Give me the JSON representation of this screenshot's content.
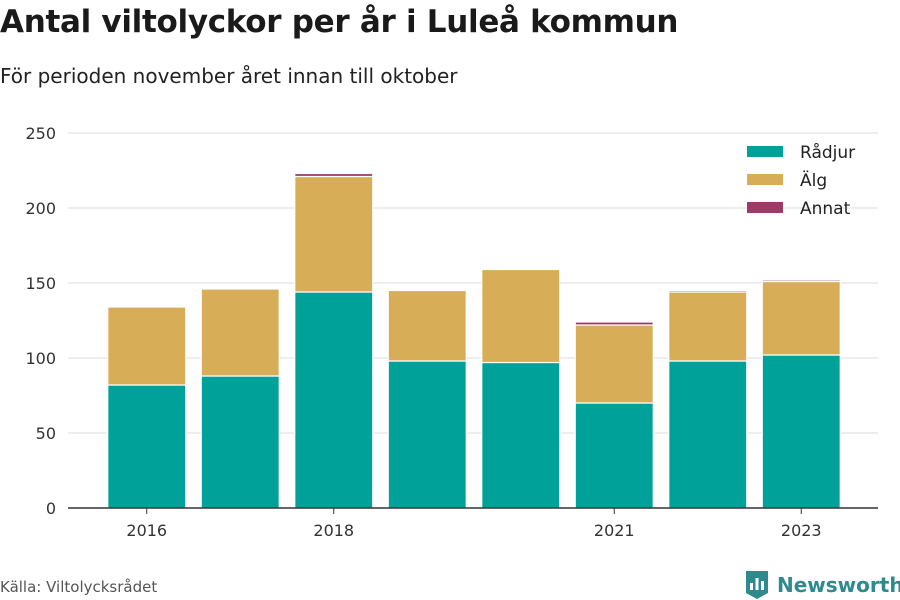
{
  "header": {
    "title": "Antal viltolyckor per år i Luleå kommun",
    "subtitle": "För perioden november året innan till oktober"
  },
  "footer": {
    "source": "Källa: Viltolycksrådet",
    "brand": "Newsworthy",
    "brand_icon": "bar-chart-badge-icon"
  },
  "colors": {
    "rådjur": "#00a199",
    "älg": "#d8ad58",
    "annat": "#9b3c66",
    "grid": "#dddddd",
    "axis": "#333333",
    "brand": "#2f8a8e"
  },
  "chart_data": {
    "type": "bar",
    "stacked": true,
    "title": "Antal viltolyckor per år i Luleå kommun",
    "subtitle": "För perioden november året innan till oktober",
    "categories": [
      "2016",
      "2017",
      "2018",
      "2019",
      "2020",
      "2021",
      "2022",
      "2023"
    ],
    "x_tick_labels": [
      "2016",
      "",
      "2018",
      "",
      "",
      "2021",
      "",
      "2023"
    ],
    "series": [
      {
        "name": "Rådjur",
        "color": "#00a199",
        "values": [
          82,
          88,
          144,
          98,
          97,
          70,
          98,
          102
        ]
      },
      {
        "name": "Älg",
        "color": "#d8ad58",
        "values": [
          52,
          58,
          77,
          47,
          62,
          52,
          46,
          49
        ]
      },
      {
        "name": "Annat",
        "color": "#9b3c66",
        "values": [
          0,
          0,
          2,
          0,
          0,
          2,
          1,
          1
        ]
      }
    ],
    "ylim": [
      0,
      250
    ],
    "yticks": [
      0,
      50,
      100,
      150,
      200,
      250
    ],
    "grid": true,
    "legend": "top-right",
    "xlabel": "",
    "ylabel": ""
  }
}
